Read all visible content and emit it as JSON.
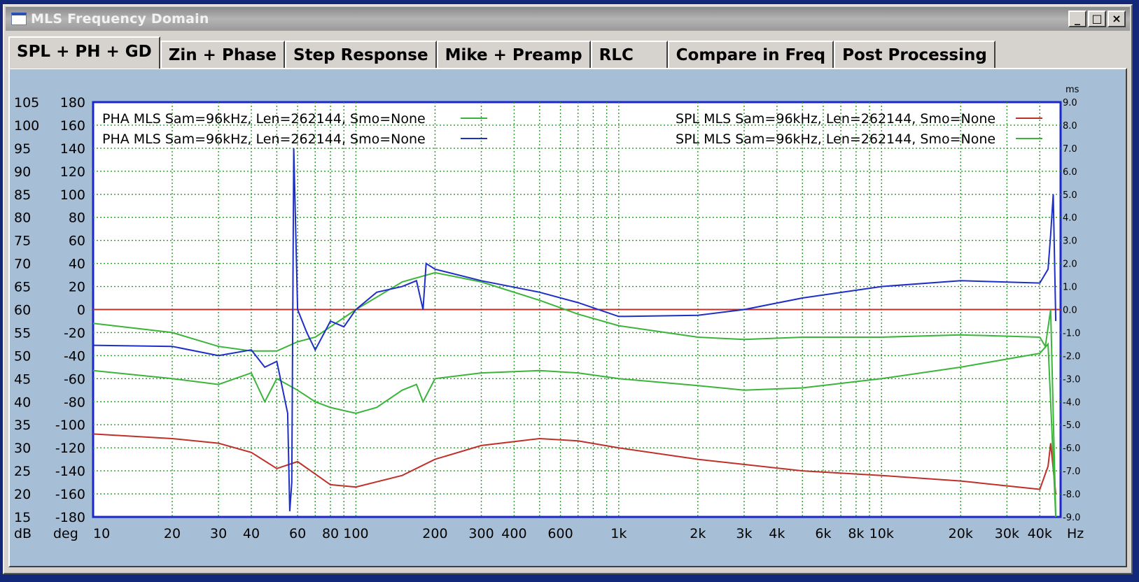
{
  "window": {
    "title": "MLS Frequency Domain",
    "controls": [
      "_",
      "□",
      "×"
    ]
  },
  "tabs": [
    {
      "label": "SPL + PH + GD",
      "active": true
    },
    {
      "label": "Zin + Phase",
      "active": false
    },
    {
      "label": "Step Response",
      "active": false
    },
    {
      "label": "Mike + Preamp",
      "active": false
    },
    {
      "label": "RLC",
      "active": false
    },
    {
      "label": "Compare in Freq",
      "active": false
    },
    {
      "label": "Post Processing",
      "active": false
    }
  ],
  "chart_data": {
    "type": "line",
    "x_scale": "log",
    "xlim": [
      10,
      48000
    ],
    "x_ticks": [
      {
        "v": 10,
        "label": "10"
      },
      {
        "v": 20,
        "label": "20"
      },
      {
        "v": 30,
        "label": "30"
      },
      {
        "v": 40,
        "label": "40"
      },
      {
        "v": 60,
        "label": "60"
      },
      {
        "v": 80,
        "label": "80"
      },
      {
        "v": 100,
        "label": "100"
      },
      {
        "v": 200,
        "label": "200"
      },
      {
        "v": 300,
        "label": "300"
      },
      {
        "v": 400,
        "label": "400"
      },
      {
        "v": 600,
        "label": "600"
      },
      {
        "v": 1000,
        "label": "1k"
      },
      {
        "v": 2000,
        "label": "2k"
      },
      {
        "v": 3000,
        "label": "3k"
      },
      {
        "v": 4000,
        "label": "4k"
      },
      {
        "v": 6000,
        "label": "6k"
      },
      {
        "v": 8000,
        "label": "8k"
      },
      {
        "v": 10000,
        "label": "10k"
      },
      {
        "v": 20000,
        "label": "20k"
      },
      {
        "v": 30000,
        "label": "30k"
      },
      {
        "v": 40000,
        "label": "40k"
      }
    ],
    "x_unit": "Hz",
    "y_spl": {
      "unit": "dB",
      "range": [
        15,
        105
      ],
      "ticks": [
        105,
        100,
        95,
        90,
        85,
        80,
        75,
        70,
        65,
        60,
        55,
        50,
        45,
        40,
        35,
        30,
        25,
        20,
        15
      ]
    },
    "y_phase": {
      "unit": "deg",
      "range": [
        -180,
        180
      ],
      "ticks": [
        180,
        160,
        140,
        120,
        100,
        80,
        60,
        40,
        20,
        0,
        -20,
        -40,
        -60,
        -80,
        -100,
        -120,
        -140,
        -160,
        -180
      ]
    },
    "y_gd": {
      "unit": "ms",
      "range": [
        -9,
        9
      ],
      "ticks": [
        "9.0",
        "8.0",
        "7.0",
        "6.0",
        "5.0",
        "4.0",
        "3.0",
        "2.0",
        "1.0",
        "0.0",
        "-1.0",
        "-2.0",
        "-3.0",
        "-4.0",
        "-5.0",
        "-6.0",
        "-7.0",
        "-8.0",
        "-9.0"
      ]
    },
    "grid": true,
    "legend": [
      {
        "text": "PHA  MLS Sam=96kHz, Len=262144, Smo=None",
        "color": "#3ab53a",
        "position": "top-left"
      },
      {
        "text": "PHA  MLS Sam=96kHz, Len=262144, Smo=None",
        "color": "#1e2fc8",
        "position": "top-left"
      },
      {
        "text": "SPL  MLS Sam=96kHz, Len=262144, Smo=None",
        "color": "#c0302a",
        "position": "top-right"
      },
      {
        "text": "SPL  MLS Sam=96kHz, Len=262144, Smo=None",
        "color": "#3ab53a",
        "position": "top-right"
      }
    ],
    "series": [
      {
        "name": "SPL  MLS Sam=96kHz, Len=262144, Smo=None",
        "axis": "spl",
        "color": "#c0302a",
        "points": [
          [
            10,
            33
          ],
          [
            20,
            32
          ],
          [
            30,
            31
          ],
          [
            40,
            29
          ],
          [
            50,
            25.5
          ],
          [
            60,
            27
          ],
          [
            80,
            22
          ],
          [
            100,
            21.5
          ],
          [
            150,
            24
          ],
          [
            200,
            27.5
          ],
          [
            300,
            30.5
          ],
          [
            500,
            32
          ],
          [
            700,
            31.5
          ],
          [
            1000,
            30
          ],
          [
            2000,
            27.5
          ],
          [
            5000,
            25
          ],
          [
            10000,
            24
          ],
          [
            20000,
            22.8
          ],
          [
            40000,
            21
          ],
          [
            43000,
            26
          ],
          [
            44000,
            31
          ],
          [
            46000,
            20
          ]
        ]
      },
      {
        "name": "SPL  MLS Sam=96kHz, Len=262144, Smo=None",
        "axis": "spl",
        "color": "#3ab53a",
        "points": [
          [
            10,
            57
          ],
          [
            20,
            55
          ],
          [
            30,
            52
          ],
          [
            40,
            51
          ],
          [
            50,
            51
          ],
          [
            60,
            53
          ],
          [
            70,
            54
          ],
          [
            100,
            60
          ],
          [
            150,
            66
          ],
          [
            200,
            68
          ],
          [
            300,
            66
          ],
          [
            500,
            62
          ],
          [
            700,
            59
          ],
          [
            1000,
            56.5
          ],
          [
            2000,
            54
          ],
          [
            3000,
            53.5
          ],
          [
            5000,
            54
          ],
          [
            10000,
            54
          ],
          [
            20000,
            54.5
          ],
          [
            40000,
            54
          ],
          [
            42000,
            52
          ],
          [
            44000,
            60
          ],
          [
            46000,
            15
          ]
        ]
      },
      {
        "name": "PHA  MLS Sam=96kHz, Len=262144, Smo=None",
        "axis": "phase",
        "color": "#3ab53a",
        "points": [
          [
            10,
            -53
          ],
          [
            20,
            -60
          ],
          [
            30,
            -65
          ],
          [
            40,
            -55
          ],
          [
            45,
            -80
          ],
          [
            50,
            -60
          ],
          [
            60,
            -70
          ],
          [
            70,
            -80
          ],
          [
            80,
            -85
          ],
          [
            100,
            -90
          ],
          [
            120,
            -85
          ],
          [
            150,
            -70
          ],
          [
            170,
            -65
          ],
          [
            180,
            -80
          ],
          [
            200,
            -60
          ],
          [
            300,
            -55
          ],
          [
            500,
            -53
          ],
          [
            700,
            -55
          ],
          [
            1000,
            -60
          ],
          [
            2000,
            -66
          ],
          [
            3000,
            -70
          ],
          [
            5000,
            -68
          ],
          [
            10000,
            -60
          ],
          [
            20000,
            -50
          ],
          [
            40000,
            -38
          ],
          [
            43000,
            -30
          ],
          [
            46000,
            -180
          ]
        ]
      },
      {
        "name": "PHA  MLS Sam=96kHz, Len=262144, Smo=None",
        "axis": "phase",
        "color": "#1e2fc8",
        "points": [
          [
            10,
            -31
          ],
          [
            20,
            -32
          ],
          [
            30,
            -40
          ],
          [
            40,
            -35
          ],
          [
            45,
            -50
          ],
          [
            50,
            -45
          ],
          [
            55,
            -90
          ],
          [
            56,
            -175
          ],
          [
            57,
            -150
          ],
          [
            58,
            140
          ],
          [
            60,
            0
          ],
          [
            65,
            -20
          ],
          [
            70,
            -35
          ],
          [
            80,
            -10
          ],
          [
            90,
            -15
          ],
          [
            100,
            0
          ],
          [
            120,
            15
          ],
          [
            150,
            20
          ],
          [
            170,
            25
          ],
          [
            180,
            0
          ],
          [
            185,
            40
          ],
          [
            200,
            35
          ],
          [
            300,
            25
          ],
          [
            500,
            15
          ],
          [
            700,
            6
          ],
          [
            1000,
            -6
          ],
          [
            2000,
            -5
          ],
          [
            3000,
            0
          ],
          [
            5000,
            10
          ],
          [
            10000,
            20
          ],
          [
            20000,
            25
          ],
          [
            40000,
            23
          ],
          [
            43000,
            35
          ],
          [
            44000,
            65
          ],
          [
            45000,
            100
          ],
          [
            46000,
            -10
          ]
        ]
      }
    ]
  }
}
